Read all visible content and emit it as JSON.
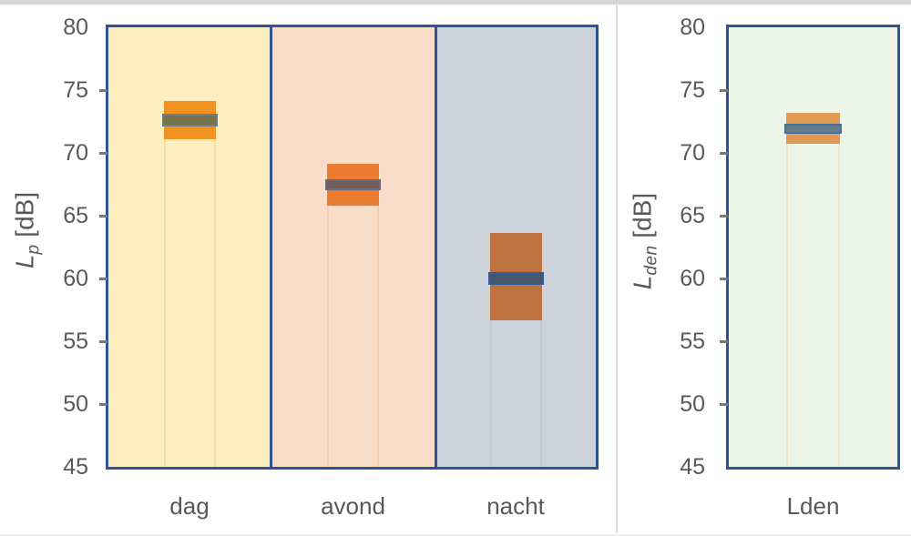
{
  "window": {
    "background_color": "#FFFFFF",
    "top_edge_color": "#D6D6D6",
    "bottom_edge_color": "#EFEFEF",
    "panel_divider_color": "#DBDBDB"
  },
  "style": {
    "plot_border_color": "#2F5496",
    "axis_text_color": "#595959",
    "tick_mark_color": "#767676"
  },
  "chart_data": [
    {
      "id": "lp",
      "type": "box-range",
      "title": "",
      "ylabel": "Lp [dB]",
      "ylabel_main": "L",
      "ylabel_sub": "p",
      "ylabel_unit": " [dB]",
      "ylim": [
        45,
        80
      ],
      "yticks": [
        80,
        75,
        70,
        65,
        60,
        55,
        50,
        45
      ],
      "inner_ticks": [
        75,
        70,
        65,
        60,
        55,
        50
      ],
      "grid": false,
      "legend": false,
      "categories": [
        {
          "label": "dag",
          "range_low": 71.1,
          "range_high": 74.1,
          "band_low": 72.1,
          "band_high": 73.1,
          "background": "#FDEEBF",
          "box_color": "#F1921E",
          "band_fill": "#74734B",
          "band_border": "#6E7D8A",
          "stem_color": "#F3DEA3"
        },
        {
          "label": "avond",
          "range_low": 65.8,
          "range_high": 69.1,
          "band_low": 67.0,
          "band_high": 67.9,
          "background": "#FADDC9",
          "box_color": "#EC7D30",
          "band_fill": "#6E5D5C",
          "band_border": "#6B6880",
          "stem_color": "#F6CDAF"
        },
        {
          "label": "nacht",
          "range_low": 56.7,
          "range_high": 63.6,
          "band_low": 59.5,
          "band_high": 60.5,
          "background": "#CDD2DB",
          "box_color": "#BC7340",
          "band_fill": "#445670",
          "band_border": "#2E5DA0",
          "stem_color": "#C3C8D3"
        }
      ]
    },
    {
      "id": "lden",
      "type": "box-range",
      "title": "",
      "ylabel": "Lden [dB]",
      "ylabel_main": "L",
      "ylabel_sub": "den",
      "ylabel_unit": " [dB]",
      "ylim": [
        45,
        80
      ],
      "yticks": [
        80,
        75,
        70,
        65,
        60,
        55,
        50,
        45
      ],
      "inner_ticks": [
        75,
        70,
        65,
        60,
        55,
        50
      ],
      "grid": false,
      "legend": false,
      "categories": [
        {
          "label": "Lden",
          "range_low": 70.7,
          "range_high": 73.2,
          "band_low": 71.5,
          "band_high": 72.3,
          "background": "#EDF4E8",
          "box_color": "#E19A53",
          "band_fill": "#677C8C",
          "band_border": "#44719E",
          "stem_color": "#EDE6CB"
        }
      ]
    }
  ]
}
